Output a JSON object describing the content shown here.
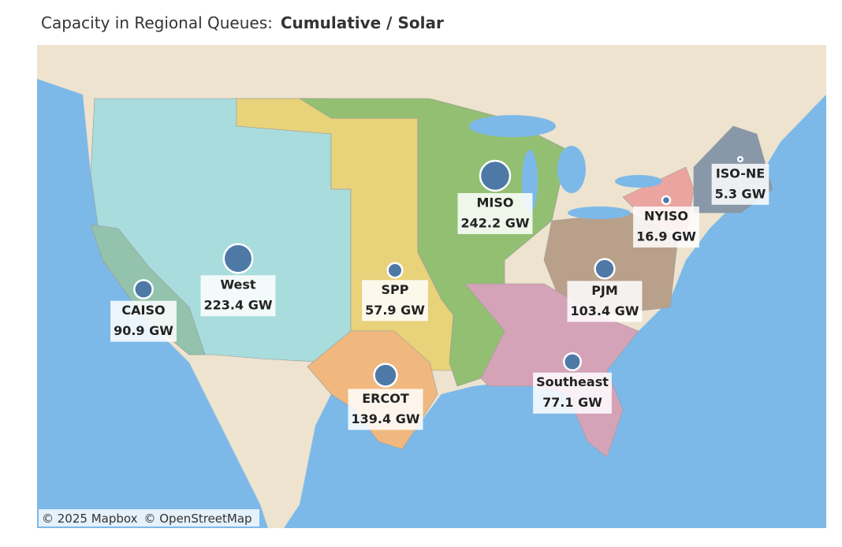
{
  "title": "Capacity in Regional Queues:",
  "title_emphasis": "Cumulative / Solar",
  "regions": {
    "names": [
      "CAISO",
      "West",
      "SPP",
      "ERCOT",
      "MISO",
      "PJM",
      "Southeast",
      "NYISO",
      "ISO-NE"
    ],
    "values": [
      90.9,
      223.4,
      57.9,
      139.4,
      242.2,
      103.4,
      77.1,
      16.9,
      5.3
    ],
    "value_labels": [
      "90.9 GW",
      "223.4 GW",
      "57.9 GW",
      "139.4 GW",
      "242.2 GW",
      "103.4 GW",
      "77.1 GW",
      "16.9 GW",
      "5.3 GW"
    ],
    "color": "#4e79a7"
  },
  "attribution": [
    "© 2025 Mapbox",
    "© OpenStreetMap"
  ]
}
